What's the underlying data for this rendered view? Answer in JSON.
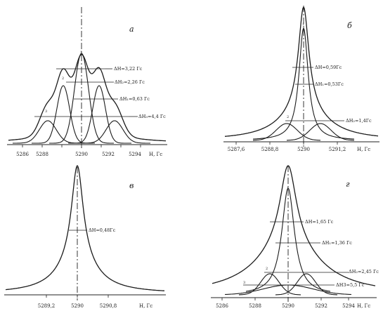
{
  "panels": [
    {
      "id": "a",
      "letter": "а",
      "axis_ticks": [
        "5286",
        "5288",
        "5290",
        "5292",
        "5294"
      ],
      "axis_label": "H, Гс",
      "annotations": [
        "ΔH=3,22 Гс",
        "ΔH₂=2,26 Гс",
        "ΔH₁=0,63 Гс",
        "ΔH₃=4,4 Гс"
      ],
      "curve_marks": [
        "1",
        "2",
        "3"
      ]
    },
    {
      "id": "b",
      "letter": "б",
      "axis_ticks": [
        "5287,6",
        "5288,8",
        "5290",
        "5291,2"
      ],
      "axis_label": "H, Гс",
      "annotations": [
        "ΔH=0,59Гс",
        "ΔH₁=0,53Гс",
        "ΔH₂=1,4Гс"
      ],
      "curve_marks": [
        "1",
        "2"
      ]
    },
    {
      "id": "v",
      "letter": "в",
      "axis_ticks": [
        "5289,2",
        "5290",
        "5290,8"
      ],
      "axis_label": "H, Гс",
      "annotations": [
        "ΔH=0,48Гс"
      ],
      "curve_marks": []
    },
    {
      "id": "g",
      "letter": "г",
      "axis_ticks": [
        "5286",
        "5288",
        "5290",
        "5292",
        "5294"
      ],
      "axis_label": "H, Гс",
      "annotations": [
        "ΔH=1,65 Гс",
        "ΔH₁=1,36 Гс",
        "ΔH₂=2,45 Гс",
        "ΔH3=5,5 Гс"
      ],
      "curve_marks": [
        "1",
        "2",
        "3"
      ]
    }
  ]
}
